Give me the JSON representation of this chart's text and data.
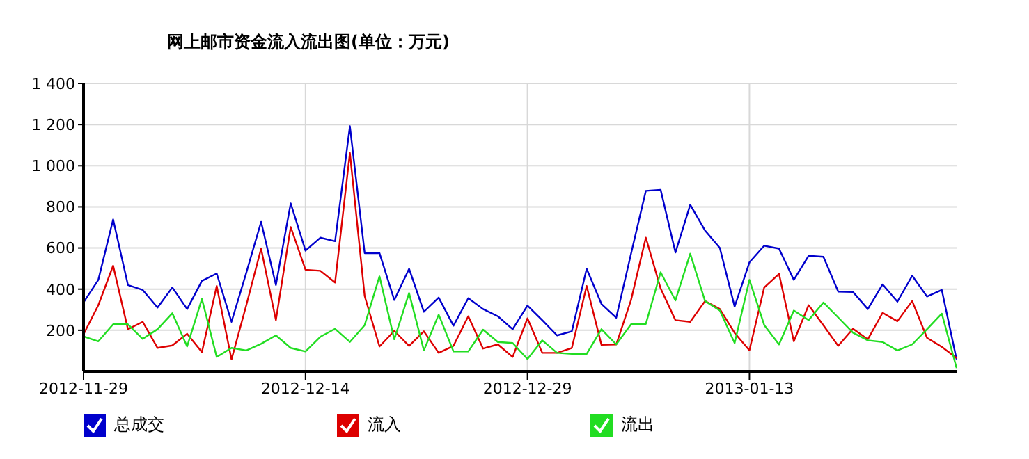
{
  "chart_data": {
    "type": "line",
    "title": "网上邮市资金流入流出图(单位：万元)",
    "x": [
      "2012-11-29",
      "2012-11-30",
      "2012-12-01",
      "2012-12-02",
      "2012-12-03",
      "2012-12-04",
      "2012-12-05",
      "2012-12-06",
      "2012-12-07",
      "2012-12-08",
      "2012-12-09",
      "2012-12-10",
      "2012-12-11",
      "2012-12-12",
      "2012-12-13",
      "2012-12-14",
      "2012-12-15",
      "2012-12-16",
      "2012-12-17",
      "2012-12-18",
      "2012-12-19",
      "2012-12-20",
      "2012-12-21",
      "2012-12-22",
      "2012-12-23",
      "2012-12-24",
      "2012-12-25",
      "2012-12-26",
      "2012-12-27",
      "2012-12-28",
      "2012-12-29",
      "2012-12-30",
      "2012-12-31",
      "2013-01-01",
      "2013-01-02",
      "2013-01-03",
      "2013-01-04",
      "2013-01-05",
      "2013-01-06",
      "2013-01-07",
      "2013-01-08",
      "2013-01-09",
      "2013-01-10",
      "2013-01-11",
      "2013-01-12",
      "2013-01-13",
      "2013-01-14",
      "2013-01-15",
      "2013-01-16",
      "2013-01-17",
      "2013-01-18",
      "2013-01-19",
      "2013-01-20",
      "2013-01-21",
      "2013-01-22",
      "2013-01-23",
      "2013-01-24",
      "2013-01-25",
      "2013-01-26",
      "2013-01-27"
    ],
    "series": [
      {
        "name": "总成交",
        "color": "#0000cc",
        "values": [
          335,
          445,
          739,
          420,
          396,
          310,
          408,
          303,
          440,
          476,
          241,
          480,
          727,
          420,
          817,
          587,
          650,
          633,
          1192,
          575,
          575,
          347,
          499,
          290,
          359,
          222,
          356,
          303,
          268,
          205,
          320,
          249,
          175,
          195,
          499,
          328,
          261,
          572,
          878,
          883,
          578,
          810,
          685,
          600,
          315,
          530,
          611,
          597,
          445,
          562,
          557,
          388,
          386,
          303,
          423,
          339,
          465,
          364,
          396,
          58
        ]
      },
      {
        "name": "流入",
        "color": "#dd0000",
        "values": [
          180,
          322,
          514,
          205,
          241,
          114,
          126,
          183,
          94,
          415,
          58,
          322,
          597,
          249,
          702,
          494,
          489,
          432,
          1062,
          366,
          121,
          197,
          124,
          195,
          90,
          124,
          268,
          111,
          131,
          70,
          258,
          90,
          90,
          114,
          415,
          129,
          131,
          347,
          650,
          403,
          249,
          241,
          342,
          303,
          187,
          102,
          408,
          474,
          146,
          322,
          224,
          124,
          207,
          156,
          285,
          244,
          342,
          163,
          119,
          65
        ]
      },
      {
        "name": "流出",
        "color": "#22dd22",
        "values": [
          170,
          146,
          229,
          229,
          158,
          205,
          283,
          121,
          352,
          70,
          114,
          102,
          134,
          175,
          114,
          97,
          168,
          207,
          143,
          225,
          462,
          156,
          381,
          102,
          276,
          97,
          97,
          203,
          143,
          138,
          60,
          151,
          90,
          85,
          85,
          205,
          131,
          229,
          231,
          482,
          345,
          572,
          342,
          296,
          138,
          445,
          225,
          131,
          296,
          249,
          335,
          262,
          188,
          151,
          143,
          102,
          131,
          205,
          281,
          16
        ]
      }
    ],
    "xlim": [
      "2012-11-29",
      "2013-01-27"
    ],
    "xticks": [
      "2012-11-29",
      "2012-12-14",
      "2012-12-29",
      "2013-01-13"
    ],
    "ylim": [
      0,
      1400
    ],
    "yticks": [
      {
        "value": 200,
        "label": "200"
      },
      {
        "value": 400,
        "label": "400"
      },
      {
        "value": 600,
        "label": "600"
      },
      {
        "value": 800,
        "label": "800"
      },
      {
        "value": 1000,
        "label": "1 000"
      },
      {
        "value": 1200,
        "label": "1 200"
      },
      {
        "value": 1400,
        "label": "1 400"
      }
    ],
    "grid": true,
    "legend": "bottom",
    "marker": "none",
    "line_style": "solid"
  }
}
